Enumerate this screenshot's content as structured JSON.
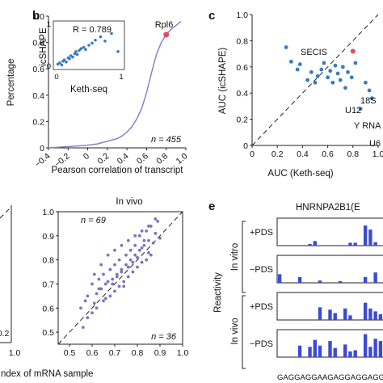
{
  "panels": {
    "b": {
      "letter": "b",
      "xlabel": "Pearson correlation of transcript",
      "ylabel": "Percentage",
      "n_label": "n = 455",
      "highlight_label": "Rpl6",
      "inset": {
        "r_label": "R = 0.789",
        "xlabel": "Keth-seq",
        "ylabel": "icSHAPE"
      }
    },
    "c": {
      "letter": "c",
      "xlabel": "AUC (Keth-seq)",
      "ylabel": "AUC (icSHAPE)",
      "labels": {
        "secis": "SECIS",
        "s18": "18S",
        "u12": "U12",
        "yrna": "Y RNA",
        "u6": "U6"
      }
    },
    "d": {
      "title": "In vivo",
      "xlabel": "ndex of mRNA sample",
      "n_top": "n = 69",
      "n_bottom": "n = 36",
      "left_tick_top": "1.0",
      "left_tick_bottom": "0.2"
    },
    "e": {
      "letter": "e",
      "title": "HNRNPA2B1(E",
      "ylabel": "Reactivity",
      "group_invitro": "In vitro",
      "group_invivo": "In vivo",
      "tracks": [
        "+PDS",
        "−PDS",
        "+PDS",
        "−PDS"
      ],
      "sequence": "GAGGAGGAAGAGGAGGAGGAA"
    }
  },
  "chart_data": [
    {
      "panel": "b",
      "type": "line",
      "title": "",
      "xlabel": "Pearson correlation of transcript",
      "ylabel": "Percentage",
      "xlim": [
        -0.4,
        1.0
      ],
      "ylim": [
        0,
        1.0
      ],
      "x_ticks": [
        "−0.4",
        "−0.2",
        "0",
        "0.2",
        "0.4",
        "0.6",
        "0.8",
        "1.0"
      ],
      "y_ticks": [
        "0",
        "0.2",
        "0.4",
        "0.6",
        "0.8",
        "1.0"
      ],
      "x_tick_values": [
        -0.4,
        -0.2,
        0,
        0.2,
        0.4,
        0.6,
        0.8,
        1.0
      ],
      "y_tick_values": [
        0,
        0.2,
        0.4,
        0.6,
        0.8,
        1.0
      ],
      "x": [
        -0.4,
        -0.3,
        -0.2,
        -0.1,
        0.0,
        0.1,
        0.2,
        0.3,
        0.35,
        0.4,
        0.45,
        0.5,
        0.55,
        0.6,
        0.65,
        0.7,
        0.75,
        0.8,
        0.85,
        0.9,
        0.95
      ],
      "y": [
        0.0,
        0.005,
        0.01,
        0.015,
        0.02,
        0.03,
        0.05,
        0.07,
        0.09,
        0.12,
        0.16,
        0.22,
        0.3,
        0.42,
        0.57,
        0.71,
        0.8,
        0.86,
        0.9,
        0.93,
        0.96
      ],
      "highlight": {
        "label": "Rpl6",
        "x": 0.8,
        "y": 0.86,
        "color": "#e8475a"
      },
      "line_color": "#8878c3",
      "n": 455
    },
    {
      "panel": "b-inset",
      "type": "scatter",
      "title": "",
      "xlabel": "Keth-seq",
      "ylabel": "icSHAPE",
      "xlim": [
        0,
        1
      ],
      "ylim": [
        0,
        1
      ],
      "x_ticks": [
        "0",
        "1"
      ],
      "y_ticks": [
        "0",
        "1"
      ],
      "x_tick_values": [
        0,
        1
      ],
      "y_tick_values": [
        0,
        1
      ],
      "x": [
        0.02,
        0.05,
        0.08,
        0.1,
        0.12,
        0.15,
        0.18,
        0.2,
        0.22,
        0.25,
        0.28,
        0.3,
        0.32,
        0.35,
        0.38,
        0.42,
        0.45,
        0.5,
        0.55,
        0.6,
        0.68,
        0.75,
        0.85,
        0.95
      ],
      "y": [
        0.05,
        0.08,
        0.03,
        0.12,
        0.15,
        0.1,
        0.2,
        0.18,
        0.25,
        0.22,
        0.3,
        0.35,
        0.28,
        0.38,
        0.42,
        0.45,
        0.4,
        0.5,
        0.55,
        0.62,
        0.7,
        0.6,
        0.78,
        0.35
      ],
      "r": 0.789,
      "point_color": "#3a7bbf"
    },
    {
      "panel": "c",
      "type": "scatter",
      "title": "",
      "xlabel": "AUC (Keth-seq)",
      "ylabel": "AUC (icSHAPE)",
      "xlim": [
        0,
        1.0
      ],
      "ylim": [
        0,
        1.0
      ],
      "x_ticks": [
        "0",
        "0.2",
        "0.4",
        "0.6",
        "0.8",
        "1.0"
      ],
      "y_ticks": [
        "0",
        "0.2",
        "0.4",
        "0.6",
        "0.8",
        "1.0"
      ],
      "x_tick_values": [
        0,
        0.2,
        0.4,
        0.6,
        0.8,
        1.0
      ],
      "y_tick_values": [
        0,
        0.2,
        0.4,
        0.6,
        0.8,
        1.0
      ],
      "x": [
        0.27,
        0.31,
        0.36,
        0.38,
        0.44,
        0.47,
        0.5,
        0.52,
        0.55,
        0.57,
        0.6,
        0.62,
        0.64,
        0.66,
        0.68,
        0.7,
        0.72,
        0.74,
        0.76,
        0.79,
        0.82,
        0.86,
        0.9,
        0.93,
        0.95
      ],
      "y": [
        0.75,
        0.64,
        0.58,
        0.62,
        0.5,
        0.56,
        0.48,
        0.53,
        0.58,
        0.63,
        0.52,
        0.57,
        0.48,
        0.61,
        0.55,
        0.5,
        0.6,
        0.44,
        0.56,
        0.52,
        0.63,
        0.28,
        0.48,
        0.42,
        0.36
      ],
      "highlight": {
        "label": "18S",
        "x": 0.8,
        "y": 0.72,
        "color": "#e8475a"
      },
      "point_color": "#3a7bbf"
    },
    {
      "panel": "d",
      "type": "scatter",
      "title": "In vivo",
      "xlabel": "",
      "ylabel": "",
      "xlim": [
        0.45,
        1.0
      ],
      "ylim": [
        0.45,
        1.0
      ],
      "x_ticks": [
        "0.5",
        "0.6",
        "0.7",
        "0.8",
        "0.9",
        "1.0"
      ],
      "y_ticks": [
        "0.5",
        "0.6",
        "0.7",
        "0.8",
        "0.9",
        "1.0"
      ],
      "x_tick_values": [
        0.5,
        0.6,
        0.7,
        0.8,
        0.9,
        1.0
      ],
      "y_tick_values": [
        0.5,
        0.6,
        0.7,
        0.8,
        0.9,
        1.0
      ],
      "x": [
        0.55,
        0.57,
        0.58,
        0.6,
        0.61,
        0.62,
        0.63,
        0.64,
        0.65,
        0.66,
        0.67,
        0.68,
        0.69,
        0.7,
        0.71,
        0.72,
        0.73,
        0.74,
        0.75,
        0.76,
        0.77,
        0.78,
        0.79,
        0.8,
        0.81,
        0.82,
        0.83,
        0.84,
        0.85,
        0.86,
        0.87,
        0.88,
        0.89,
        0.9,
        0.6,
        0.62,
        0.65,
        0.68,
        0.7,
        0.72,
        0.74,
        0.76,
        0.78,
        0.8,
        0.82,
        0.84,
        0.86,
        0.63,
        0.66,
        0.69,
        0.71,
        0.73,
        0.75,
        0.77,
        0.79,
        0.81,
        0.83,
        0.85,
        0.58,
        0.61,
        0.64,
        0.67,
        0.7,
        0.73,
        0.76,
        0.79,
        0.82,
        0.85,
        0.88,
        0.56
      ],
      "y": [
        0.6,
        0.63,
        0.56,
        0.7,
        0.62,
        0.66,
        0.72,
        0.68,
        0.74,
        0.64,
        0.71,
        0.76,
        0.7,
        0.78,
        0.73,
        0.8,
        0.75,
        0.69,
        0.82,
        0.77,
        0.84,
        0.79,
        0.86,
        0.81,
        0.9,
        0.85,
        0.88,
        0.92,
        0.83,
        0.94,
        0.87,
        0.91,
        0.96,
        0.89,
        0.58,
        0.6,
        0.63,
        0.65,
        0.67,
        0.69,
        0.71,
        0.73,
        0.75,
        0.77,
        0.79,
        0.8,
        0.82,
        0.68,
        0.7,
        0.72,
        0.74,
        0.76,
        0.78,
        0.8,
        0.82,
        0.84,
        0.86,
        0.88,
        0.65,
        0.74,
        0.78,
        0.82,
        0.84,
        0.86,
        0.88,
        0.9,
        0.92,
        0.94,
        0.97,
        0.52
      ],
      "point_color": "#7f72c0"
    },
    {
      "panel": "e",
      "type": "bar",
      "title": "HNRNPA2B1(E",
      "xlabel": "",
      "ylabel": "Reactivity",
      "categories": [
        "G",
        "A",
        "G",
        "G",
        "A",
        "G",
        "G",
        "A",
        "A",
        "G",
        "A",
        "G",
        "G",
        "A",
        "G",
        "G",
        "A",
        "G",
        "G",
        "A",
        "A"
      ],
      "series": [
        {
          "name": "+PDS",
          "values": [
            0,
            0,
            0,
            0,
            0,
            0,
            0.03,
            0.08,
            0,
            0,
            0,
            0,
            0,
            0,
            0.05,
            0.05,
            0,
            0.35,
            0.28,
            0.06,
            0
          ]
        },
        {
          "name": "−PDS",
          "values": [
            0.15,
            0,
            0,
            0,
            0.1,
            0,
            0,
            0,
            0.04,
            0,
            0,
            0,
            0.03,
            0,
            0,
            0,
            0,
            0.1,
            0,
            0.18,
            0
          ]
        },
        {
          "name": "+PDS",
          "values": [
            0,
            0,
            0,
            0,
            0,
            0,
            0,
            0,
            0.22,
            0,
            0.18,
            0.12,
            0,
            0.2,
            0.08,
            0,
            0,
            0.3,
            0.2,
            0.15,
            0.1
          ]
        },
        {
          "name": "−PDS",
          "values": [
            0,
            0,
            0,
            0,
            0.2,
            0,
            0.18,
            0.3,
            0.2,
            0,
            0.28,
            0.16,
            0,
            0.22,
            0.1,
            0.12,
            0,
            0.4,
            0.18,
            0.32,
            0.28
          ]
        }
      ],
      "bar_color": "#3b4bd1"
    }
  ]
}
